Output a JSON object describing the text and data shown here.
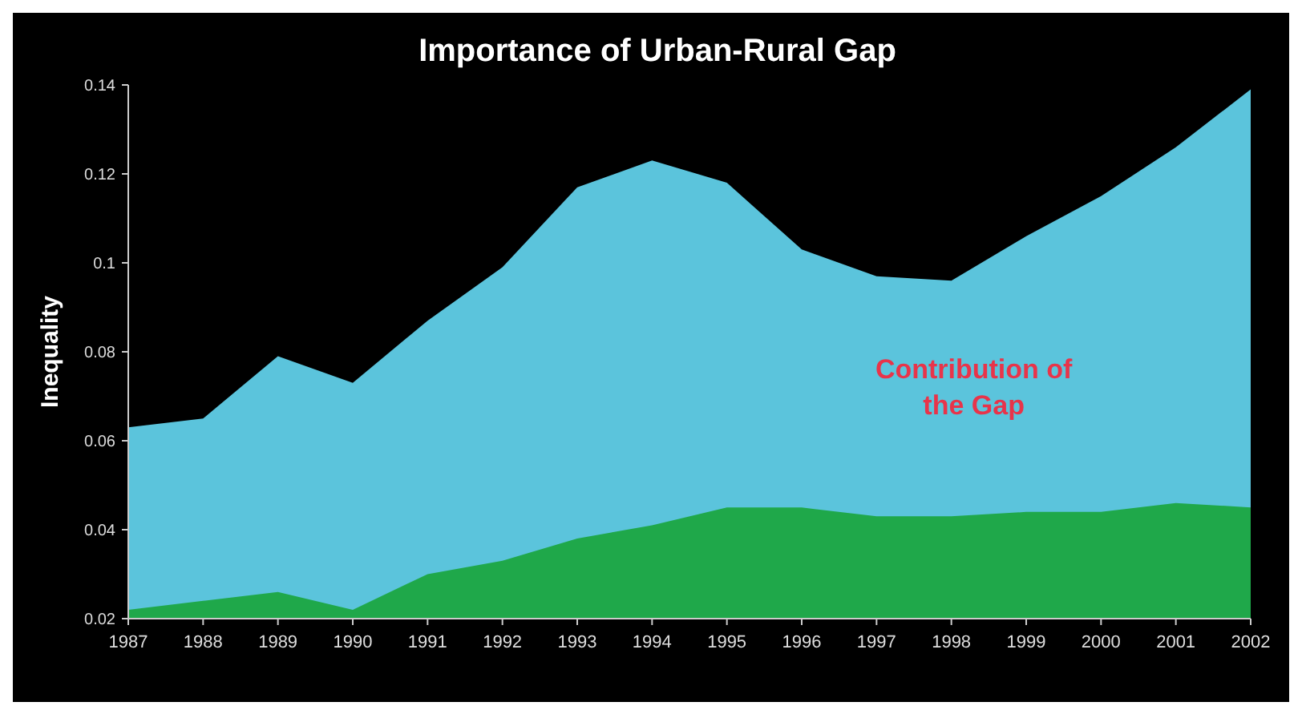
{
  "chart_data": {
    "type": "area",
    "title": "Importance of Urban-Rural Gap",
    "ylabel": "Inequality",
    "categories": [
      "1987",
      "1988",
      "1989",
      "1990",
      "1991",
      "1992",
      "1993",
      "1994",
      "1995",
      "1996",
      "1997",
      "1998",
      "1999",
      "2000",
      "2001",
      "2002"
    ],
    "series": [
      {
        "color": "#5bc4dc",
        "values": [
          0.063,
          0.065,
          0.079,
          0.073,
          0.087,
          0.099,
          0.117,
          0.123,
          0.118,
          0.103,
          0.097,
          0.096,
          0.106,
          0.115,
          0.126,
          0.139
        ]
      },
      {
        "color": "#1fa84a",
        "values": [
          0.022,
          0.024,
          0.026,
          0.022,
          0.03,
          0.033,
          0.038,
          0.041,
          0.045,
          0.045,
          0.043,
          0.043,
          0.044,
          0.044,
          0.046,
          0.045
        ]
      }
    ],
    "ylim": [
      0.02,
      0.14
    ],
    "yticks": [
      0.02,
      0.04,
      0.06,
      0.08,
      0.1,
      0.12,
      0.14
    ],
    "annotations": [
      "Contribution of\nthe Gap"
    ],
    "grid": false
  }
}
